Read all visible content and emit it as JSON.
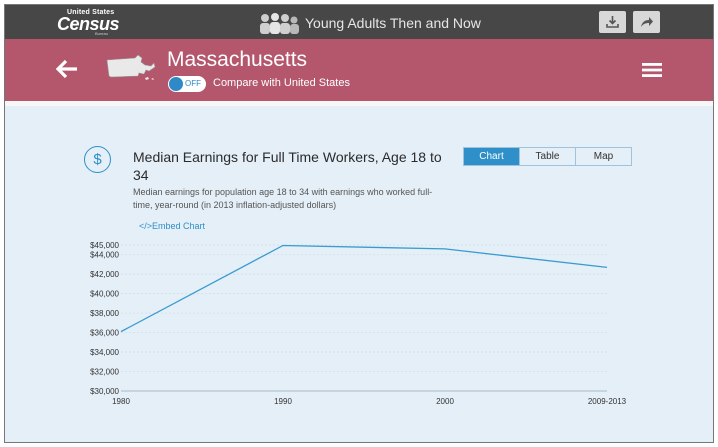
{
  "topbar": {
    "logo_top": "United States",
    "logo_main": "Census",
    "logo_sub": "Bureau",
    "app_title": "Young Adults Then and Now",
    "download_icon": "download-icon",
    "share_icon": "share-icon"
  },
  "header": {
    "back_icon": "arrow-left-icon",
    "state_icon": "massachusetts-outline-icon",
    "state_name": "Massachusetts",
    "toggle_label": "OFF",
    "compare_label": "Compare with United States",
    "menu_icon": "hamburger-menu-icon"
  },
  "panel": {
    "icon": "dollar-icon",
    "icon_glyph": "$",
    "title": "Median Earnings for Full Time Workers, Age 18 to 34",
    "subtitle": "Median earnings for population age 18 to 34 with earnings who worked full-time, year-round (in 2013 inflation-adjusted dollars)",
    "embed_label": "</>Embed Chart",
    "tabs": [
      "Chart",
      "Table",
      "Map"
    ],
    "active_tab": "Chart"
  },
  "colors": {
    "topbar": "#474747",
    "header": "#b4576d",
    "panel_bg": "#e4eff7",
    "accent": "#2f8fc8",
    "line": "#3a9bd1"
  },
  "chart_data": {
    "type": "line",
    "categories": [
      "1980",
      "1990",
      "2000",
      "2009-2013"
    ],
    "values": [
      36100,
      44950,
      44600,
      42700
    ],
    "ylim": [
      30000,
      45000
    ],
    "yticks": [
      "$30,000",
      "$32,000",
      "$34,000",
      "$36,000",
      "$38,000",
      "$40,000",
      "$42,000",
      "$44,000",
      "$45,000"
    ],
    "ytick_values": [
      30000,
      32000,
      34000,
      36000,
      38000,
      40000,
      42000,
      44000,
      45000
    ],
    "grid": true,
    "title": "",
    "xlabel": "",
    "ylabel": ""
  }
}
